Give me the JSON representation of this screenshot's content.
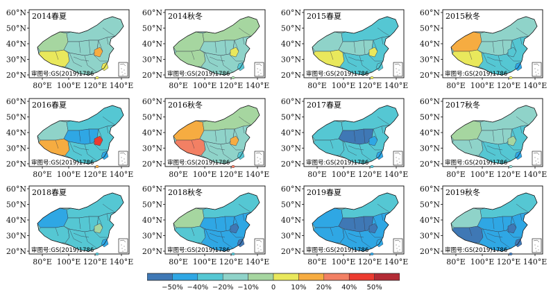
{
  "colors": {
    "lt_neg50": "#3f78b5",
    "neg50_neg40": "#2fa7e4",
    "neg40_neg20": "#55c7d3",
    "neg20_neg10": "#8fd3c9",
    "neg10_0": "#a6d6a0",
    "0_10": "#e9e85c",
    "10_20": "#f6ac41",
    "20_40": "#f28064",
    "40_50": "#ec3b30",
    "gt50": "#b32b35"
  },
  "axis_labels": {
    "y": [
      "60°N",
      "50°N",
      "40°N",
      "30°N",
      "20°N"
    ],
    "x": [
      "80°E",
      "100°E",
      "120°E",
      "140°E"
    ]
  },
  "review_number": "审图号:GS(2019)1786",
  "panels": [
    {
      "title": "2014春夏",
      "west": "neg10_0",
      "north": "neg20_neg10",
      "south": "0_10",
      "east": "neg20_neg10",
      "center": "neg20_neg10",
      "spot1": "10_20",
      "spot2": "0_10"
    },
    {
      "title": "2014秋冬",
      "west": "neg10_0",
      "north": "neg10_0",
      "south": "neg10_0",
      "east": "neg20_neg10",
      "center": "neg20_neg10",
      "spot1": "0_10",
      "spot2": "neg40_neg20"
    },
    {
      "title": "2015春夏",
      "west": "neg20_neg10",
      "north": "neg40_neg20",
      "south": "0_10",
      "east": "neg40_neg20",
      "center": "neg20_neg10",
      "spot1": "0_10",
      "spot2": "neg40_neg20"
    },
    {
      "title": "2015秋冬",
      "west": "10_20",
      "north": "neg20_neg10",
      "south": "0_10",
      "east": "neg40_neg20",
      "center": "neg20_neg10",
      "spot1": "neg40_neg20",
      "spot2": "neg50_neg40"
    },
    {
      "title": "2016春夏",
      "west": "neg20_neg10",
      "north": "neg40_neg20",
      "south": "10_20",
      "east": "neg40_neg20",
      "center": "neg50_neg40",
      "spot1": "40_50",
      "spot2": "neg50_neg40"
    },
    {
      "title": "2016秋冬",
      "west": "10_20",
      "north": "neg10_0",
      "south": "20_40",
      "east": "neg20_neg10",
      "center": "neg20_neg10",
      "spot1": "10_20",
      "spot2": "neg40_neg20"
    },
    {
      "title": "2017春夏",
      "west": "neg40_neg20",
      "north": "neg40_neg20",
      "south": "neg40_neg20",
      "east": "neg40_neg20",
      "center": "lt_neg50",
      "spot1": "neg50_neg40",
      "spot2": "neg50_neg40"
    },
    {
      "title": "2017秋冬",
      "west": "neg10_0",
      "north": "neg20_neg10",
      "south": "neg20_neg10",
      "east": "neg40_neg20",
      "center": "neg20_neg10",
      "spot1": "neg10_0",
      "spot2": "neg50_neg40"
    },
    {
      "title": "2018春夏",
      "west": "neg50_neg40",
      "north": "neg40_neg20",
      "south": "neg40_neg20",
      "east": "neg40_neg20",
      "center": "neg40_neg20",
      "spot1": "neg10_0",
      "spot2": "neg50_neg40"
    },
    {
      "title": "2018秋冬",
      "west": "neg10_0",
      "north": "neg40_neg20",
      "south": "neg40_neg20",
      "east": "neg50_neg40",
      "center": "neg50_neg40",
      "spot1": "lt_neg50",
      "spot2": "lt_neg50"
    },
    {
      "title": "2019春夏",
      "west": "neg50_neg40",
      "north": "neg40_neg20",
      "south": "neg50_neg40",
      "east": "neg50_neg40",
      "center": "lt_neg50",
      "spot1": "lt_neg50",
      "spot2": "neg50_neg40"
    },
    {
      "title": "2019秋冬",
      "west": "neg20_neg10",
      "north": "neg40_neg20",
      "south": "lt_neg50",
      "east": "neg50_neg40",
      "center": "neg50_neg40",
      "spot1": "lt_neg50",
      "spot2": "lt_neg50"
    }
  ],
  "legend": {
    "order": [
      "lt_neg50",
      "neg50_neg40",
      "neg40_neg20",
      "neg20_neg10",
      "neg10_0",
      "0_10",
      "10_20",
      "20_40",
      "40_50",
      "gt50"
    ],
    "ticks": [
      "−50%",
      "−40%",
      "−20%",
      "−10%",
      "0",
      "10%",
      "20%",
      "40%",
      "50%"
    ]
  }
}
